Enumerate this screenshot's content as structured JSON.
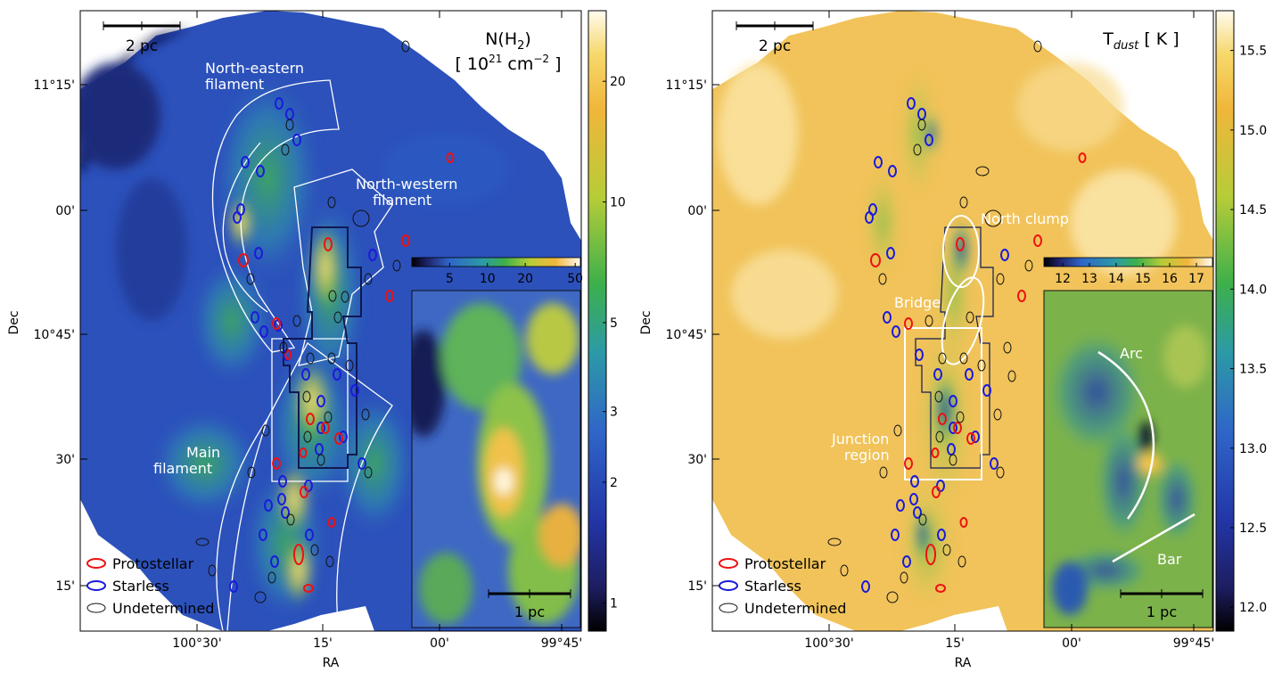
{
  "chart_data": [
    {
      "type": "heatmap",
      "quantity": "N(H₂)",
      "unit": "[ 10²¹ cm⁻² ]",
      "title_line1": "N(H",
      "title_sub": "2",
      "title_end": ")",
      "unit_line": "[ 10",
      "unit_sup1": "21",
      "unit_mid": " cm",
      "unit_sup2": "−2",
      "unit_end": " ]",
      "colormap": [
        "#000000",
        "#1f1f6e",
        "#2850c8",
        "#2fa3b0",
        "#4fbf4f",
        "#b5d23c",
        "#f3c13a",
        "#ffffff"
      ],
      "x_axis": {
        "label": "RA",
        "ticks": [
          "100°30'",
          "15'",
          "00'",
          "99°45'"
        ]
      },
      "y_axis": {
        "label": "Dec",
        "ticks": [
          "11°15'",
          "00'",
          "10°45'",
          "30'",
          "15'"
        ]
      },
      "colorbar": {
        "scale": "log",
        "ticks": [
          1,
          2,
          3,
          5,
          10,
          20
        ]
      },
      "inset_colorbar": {
        "scale": "log",
        "ticks": [
          5,
          10,
          20,
          50
        ]
      },
      "scalebar": "2 pc",
      "inset_scalebar": "1 pc",
      "region_labels": [
        "North-eastern\nfilament",
        "North-western\nfilament",
        "Main\nfilament"
      ],
      "legend": [
        "Protostellar",
        "Starless",
        "Undetermined"
      ]
    },
    {
      "type": "heatmap",
      "quantity": "T_dust",
      "unit": "[ K ]",
      "title_main": "T",
      "title_sub": "dust",
      "title_unit": " [ K ]",
      "colormap": [
        "#000000",
        "#1f1f6e",
        "#2850c8",
        "#2fa3b0",
        "#4fbf4f",
        "#b5d23c",
        "#f3c13a",
        "#ffffff"
      ],
      "x_axis": {
        "label": "RA",
        "ticks": [
          "100°30'",
          "15'",
          "00'",
          "99°45'"
        ]
      },
      "y_axis": {
        "label": "Dec",
        "ticks": [
          "11°15'",
          "00'",
          "10°45'",
          "30'",
          "15'"
        ]
      },
      "colorbar": {
        "scale": "linear",
        "ticks": [
          12.0,
          12.5,
          13.0,
          13.5,
          14.0,
          14.5,
          15.0,
          15.5
        ]
      },
      "inset_colorbar": {
        "scale": "linear",
        "ticks": [
          12,
          13,
          14,
          15,
          16,
          17
        ]
      },
      "scalebar": "2 pc",
      "inset_scalebar": "1 pc",
      "region_labels": [
        "North clump",
        "Bridge",
        "Junction\nregion",
        "Arc",
        "Bar"
      ],
      "legend": [
        "Protostellar",
        "Starless",
        "Undetermined"
      ]
    }
  ],
  "legend_colors": {
    "Protostellar": "#ee1111",
    "Starless": "#1a1adc",
    "Undetermined": "#111111"
  }
}
